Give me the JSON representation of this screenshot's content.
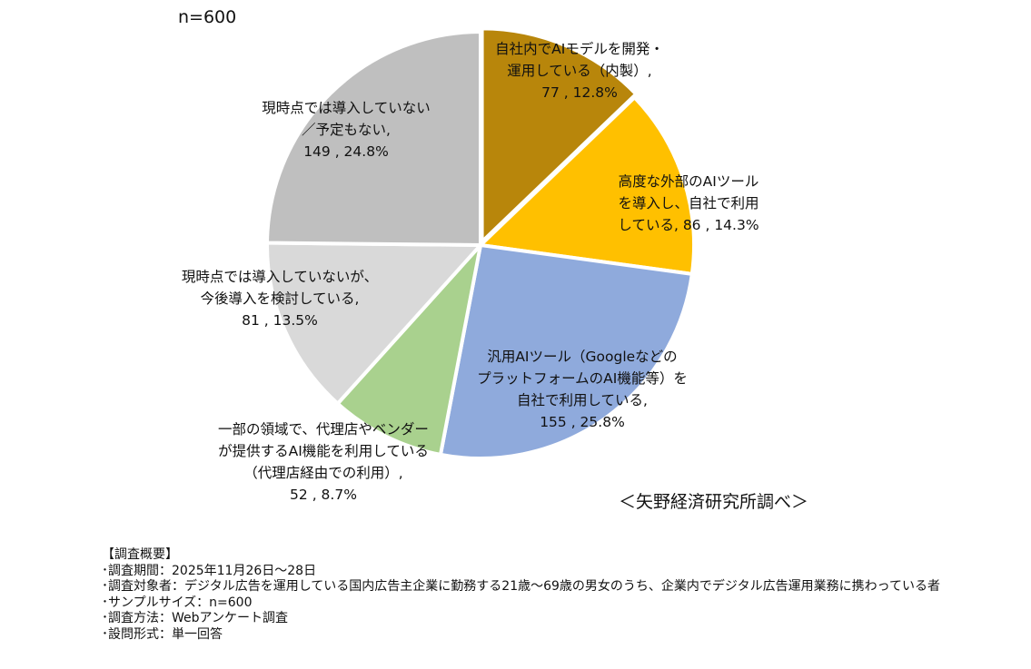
{
  "sample_label": "n=600",
  "source": "＜矢野経済研究所調べ＞",
  "notes": [
    "【調査概要】",
    "･調査期間：2025年11月26日～28日",
    "･調査対象者：デジタル広告を運用している国内広告主企業に勤務する21歳～69歳の男女のうち、企業内でデジタル広告運用業務に携わっている者",
    "･サンプルサイズ：n=600",
    "･調査方法：Webアンケート調査",
    "･設問形式：単一回答"
  ],
  "chart_data": {
    "type": "pie",
    "title": "",
    "total": 600,
    "start_angle_deg": 0,
    "direction": "clockwise",
    "slices": [
      {
        "label_lines": [
          "自社内でAIモデルを開発・",
          "運用している（内製）,"
        ],
        "value_text": "77 , 12.8%",
        "value": 77,
        "percent": 12.8,
        "color": "#B8860B"
      },
      {
        "label_lines": [
          "高度な外部のAIツール",
          "を導入し、自社で利用"
        ],
        "value_text": "している, 86 , 14.3%",
        "value": 86,
        "percent": 14.3,
        "color": "#FFC000"
      },
      {
        "label_lines": [
          "汎用AIツール（Googleなどの",
          "プラットフォームのAI機能等）を",
          "自社で利用している,"
        ],
        "value_text": "155 , 25.8%",
        "value": 155,
        "percent": 25.8,
        "color": "#8FAADC"
      },
      {
        "label_lines": [
          "一部の領域で、代理店やベンダー",
          "が提供するAI機能を利用している",
          "（代理店経由での利用）,"
        ],
        "value_text": "52 , 8.7%",
        "value": 52,
        "percent": 8.7,
        "color": "#A9D18E"
      },
      {
        "label_lines": [
          "現時点では導入していないが、",
          "今後導入を検討している,"
        ],
        "value_text": "81 , 13.5%",
        "value": 81,
        "percent": 13.5,
        "color": "#D9D9D9"
      },
      {
        "label_lines": [
          "現時点では導入していない",
          "／予定もない,"
        ],
        "value_text": "149 , 24.8%",
        "value": 149,
        "percent": 24.8,
        "color": "#BFBFBF"
      }
    ]
  }
}
